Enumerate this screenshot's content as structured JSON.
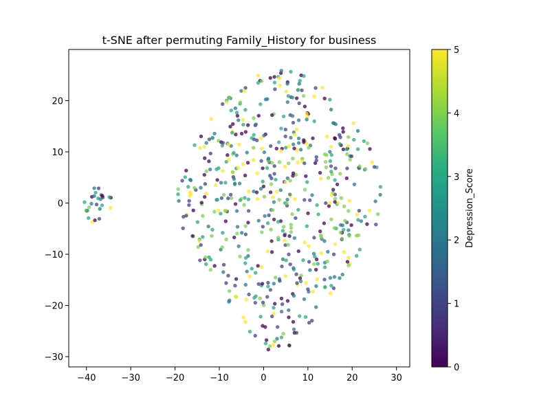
{
  "chart_data": {
    "type": "scatter",
    "title": "t-SNE after permuting Family_History for business",
    "xlabel": "",
    "ylabel": "",
    "xlim": [
      -44,
      33
    ],
    "ylim": [
      -32,
      30
    ],
    "x_ticks": [
      -40,
      -30,
      -20,
      -10,
      0,
      10,
      20,
      30
    ],
    "y_ticks": [
      -30,
      -20,
      -10,
      0,
      10,
      20
    ],
    "grid": false,
    "legend": "none",
    "colormap": "viridis",
    "colorbar": {
      "label": "Depression_Score",
      "range": [
        0,
        5
      ],
      "ticks": [
        0,
        1,
        2,
        3,
        4,
        5
      ]
    },
    "point_alpha": 0.75,
    "n_points": 626,
    "random_seed": 7
  }
}
